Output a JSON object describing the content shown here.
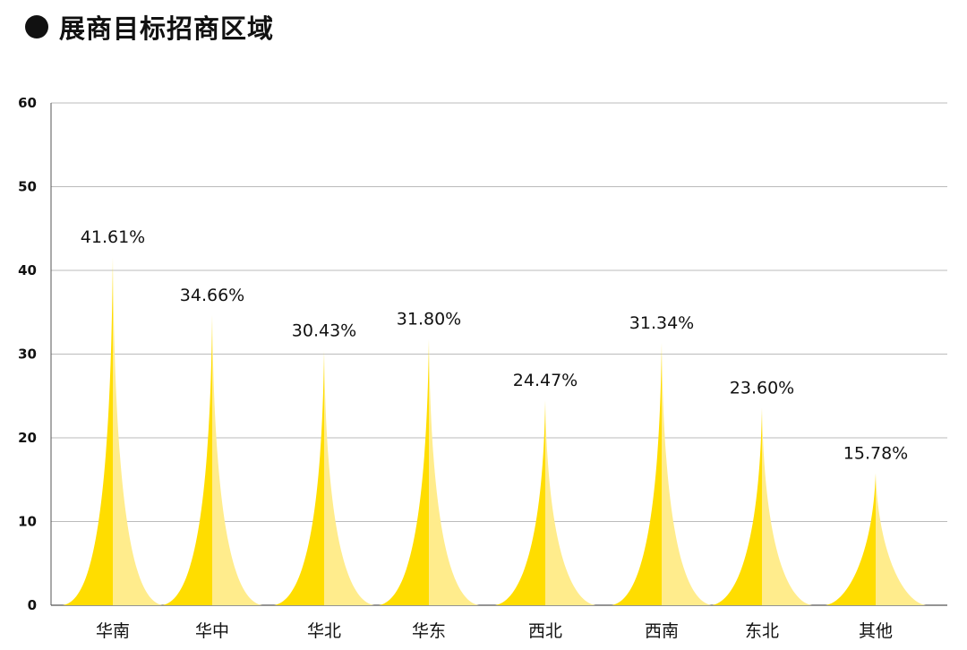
{
  "header": {
    "title": "展商目标招商区域"
  },
  "colors": {
    "left_face": "#FFDD00",
    "right_face": "#FFEC8C",
    "grid": "#BBBBBB",
    "axis": "#555555"
  },
  "chart_data": {
    "type": "bar",
    "title": "展商目标招商区域",
    "xlabel": "",
    "ylabel": "",
    "ylim": [
      0,
      60
    ],
    "yticks": [
      0,
      10,
      20,
      30,
      40,
      50,
      60
    ],
    "grid": true,
    "categories": [
      "华南",
      "华中",
      "华北",
      "华东",
      "西北",
      "西南",
      "东北",
      "其他"
    ],
    "values": [
      41.61,
      34.66,
      30.43,
      31.8,
      24.47,
      31.34,
      23.6,
      15.78
    ],
    "data_labels": [
      "41.61%",
      "34.66%",
      "30.43%",
      "31.80%",
      "24.47%",
      "31.34%",
      "23.60%",
      "15.78%"
    ]
  }
}
